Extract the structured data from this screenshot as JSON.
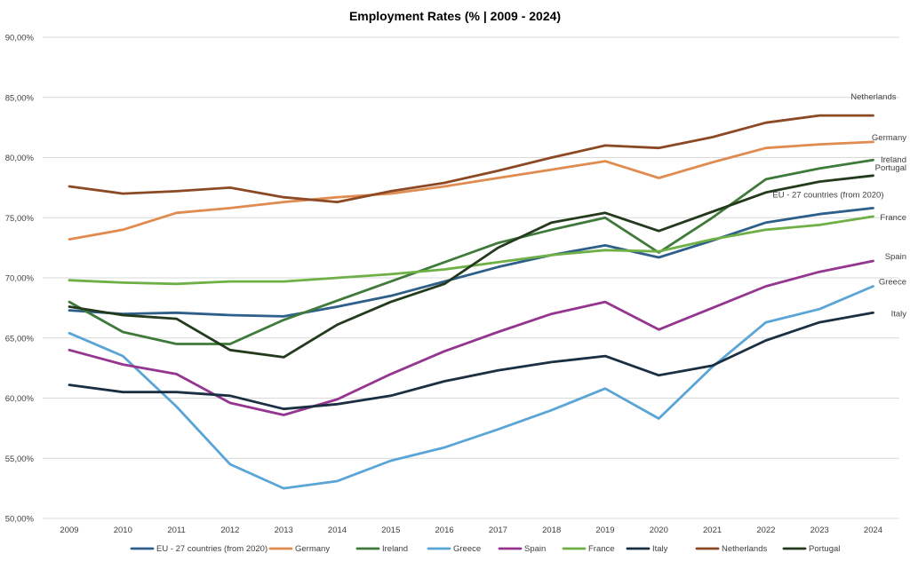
{
  "chart_data": {
    "type": "line",
    "title": "Employment Rates (% | 2009 - 2024)",
    "xlabel": "",
    "ylabel": "",
    "x": [
      "2009",
      "2010",
      "2011",
      "2012",
      "2013",
      "2014",
      "2015",
      "2016",
      "2017",
      "2018",
      "2019",
      "2020",
      "2021",
      "2022",
      "2023",
      "2024"
    ],
    "ylim": [
      50,
      90
    ],
    "yticks": [
      "50,00%",
      "55,00%",
      "60,00%",
      "65,00%",
      "70,00%",
      "75,00%",
      "80,00%",
      "85,00%",
      "90,00%"
    ],
    "grid": true,
    "legend_position": "bottom",
    "series": [
      {
        "name": "EU - 27 countries (from 2020)",
        "end_label": "EU - 27 countries (from 2020)",
        "color": "#2e5f8a",
        "values": [
          67.3,
          67.0,
          67.1,
          66.9,
          66.8,
          67.6,
          68.5,
          69.7,
          70.9,
          71.9,
          72.7,
          71.7,
          73.1,
          74.6,
          75.3,
          75.8
        ]
      },
      {
        "name": "Germany",
        "end_label": "Germany",
        "color": "#e08b50",
        "values": [
          73.2,
          74.0,
          75.4,
          75.8,
          76.3,
          76.7,
          77.0,
          77.6,
          78.3,
          79.0,
          79.7,
          78.3,
          79.6,
          80.8,
          81.1,
          81.3
        ]
      },
      {
        "name": "Ireland",
        "end_label": "Ireland",
        "color": "#3f7a3a",
        "values": [
          68.0,
          65.5,
          64.5,
          64.5,
          66.5,
          68.1,
          69.7,
          71.3,
          72.9,
          74.0,
          75.0,
          72.1,
          75.0,
          78.2,
          79.1,
          79.8
        ]
      },
      {
        "name": "Greece",
        "end_label": "Greece",
        "color": "#5aa5d6",
        "values": [
          65.4,
          63.5,
          59.3,
          54.5,
          52.5,
          53.1,
          54.8,
          55.9,
          57.4,
          59.0,
          60.8,
          58.3,
          62.6,
          66.3,
          67.4,
          69.3
        ]
      },
      {
        "name": "Spain",
        "end_label": "Spain",
        "color": "#94358f",
        "values": [
          64.0,
          62.8,
          62.0,
          59.6,
          58.6,
          59.9,
          62.0,
          63.9,
          65.5,
          67.0,
          68.0,
          65.7,
          67.5,
          69.3,
          70.5,
          71.4
        ]
      },
      {
        "name": "France",
        "end_label": "France",
        "color": "#6fb046",
        "values": [
          69.8,
          69.6,
          69.5,
          69.7,
          69.7,
          70.0,
          70.3,
          70.7,
          71.3,
          71.9,
          72.3,
          72.2,
          73.2,
          74.0,
          74.4,
          75.1
        ]
      },
      {
        "name": "Italy",
        "end_label": "Italy",
        "color": "#1b2f42",
        "values": [
          61.1,
          60.5,
          60.5,
          60.2,
          59.1,
          59.5,
          60.2,
          61.4,
          62.3,
          63.0,
          63.5,
          61.9,
          62.7,
          64.8,
          66.3,
          67.1
        ]
      },
      {
        "name": "Netherlands",
        "end_label": "Netherlands",
        "color": "#8c4a24",
        "values": [
          77.6,
          77.0,
          77.2,
          77.5,
          76.7,
          76.3,
          77.2,
          77.9,
          78.9,
          80.0,
          81.0,
          80.8,
          81.7,
          82.9,
          83.5,
          83.5
        ]
      },
      {
        "name": "Portugal",
        "end_label": "Portugal",
        "color": "#233a1c",
        "values": [
          67.6,
          66.9,
          66.6,
          64.0,
          63.4,
          66.1,
          68.0,
          69.5,
          72.5,
          74.6,
          75.4,
          73.9,
          75.5,
          77.1,
          78.0,
          78.5
        ]
      }
    ]
  }
}
